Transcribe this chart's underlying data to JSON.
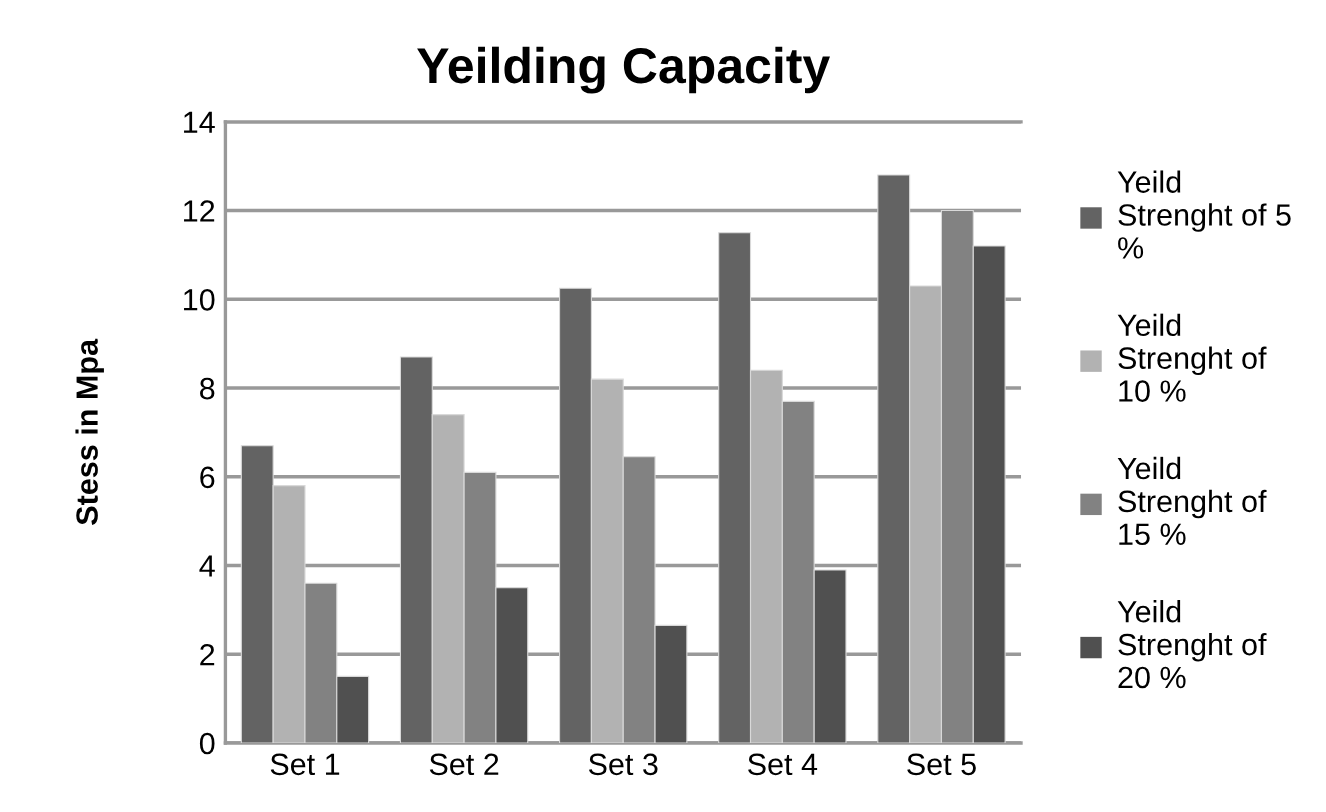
{
  "chart_data": {
    "type": "bar",
    "title": "Yeilding Capacity",
    "ylabel": "Stess in Mpa",
    "categories": [
      "Set 1",
      "Set 2",
      "Set 3",
      "Set 4",
      "Set 5"
    ],
    "series": [
      {
        "name": "Yeild\nStrenght of 5\n%",
        "color": "#636363",
        "values": [
          6.7,
          8.7,
          10.25,
          11.5,
          12.8
        ]
      },
      {
        "name": "Yeild\nStrenght of\n10 %",
        "color": "#b2b2b2",
        "values": [
          5.8,
          7.4,
          8.2,
          8.4,
          10.3
        ]
      },
      {
        "name": "Yeild\nStrenght of\n15 %",
        "color": "#828282",
        "values": [
          3.6,
          6.1,
          6.45,
          7.7,
          12.0
        ]
      },
      {
        "name": "Yeild\nStrenght of\n20 %",
        "color": "#505050",
        "values": [
          1.5,
          3.5,
          2.65,
          3.9,
          11.2
        ]
      }
    ],
    "ylim": [
      0,
      14
    ],
    "yticks": [
      0,
      2,
      4,
      6,
      8,
      10,
      12,
      14
    ],
    "grid": "y",
    "legend": "right"
  }
}
